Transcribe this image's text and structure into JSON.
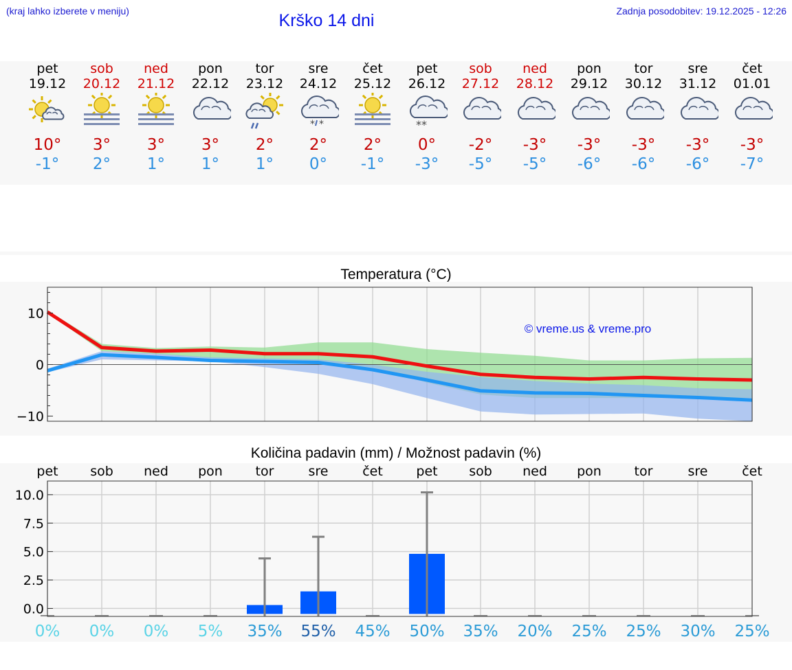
{
  "header": {
    "region_hint": "(kraj lahko izberete v meniju)",
    "title": "Krško 14 dni",
    "last_update": "Zadnja posodobitev: 19.12.2025 - 12:26"
  },
  "forecast": [
    {
      "day": "pet",
      "date": "19.12",
      "weekend": false,
      "icon": "sun-cloud-icon",
      "max": "10°",
      "min": "-1°"
    },
    {
      "day": "sob",
      "date": "20.12",
      "weekend": true,
      "icon": "sun-fog-icon",
      "max": "3°",
      "min": "2°"
    },
    {
      "day": "ned",
      "date": "21.12",
      "weekend": true,
      "icon": "sun-fog-icon",
      "max": "3°",
      "min": "1°"
    },
    {
      "day": "pon",
      "date": "22.12",
      "weekend": false,
      "icon": "cloud-icon",
      "max": "3°",
      "min": "1°"
    },
    {
      "day": "tor",
      "date": "23.12",
      "weekend": false,
      "icon": "sun-rain-icon",
      "max": "2°",
      "min": "1°"
    },
    {
      "day": "sre",
      "date": "24.12",
      "weekend": false,
      "icon": "cloud-sleet-icon",
      "max": "2°",
      "min": "0°"
    },
    {
      "day": "čet",
      "date": "25.12",
      "weekend": false,
      "icon": "sun-fog-icon",
      "max": "2°",
      "min": "-1°"
    },
    {
      "day": "pet",
      "date": "26.12",
      "weekend": false,
      "icon": "cloud-snow-icon",
      "max": "0°",
      "min": "-3°"
    },
    {
      "day": "sob",
      "date": "27.12",
      "weekend": true,
      "icon": "cloud-icon",
      "max": "-2°",
      "min": "-5°"
    },
    {
      "day": "ned",
      "date": "28.12",
      "weekend": true,
      "icon": "cloud-icon",
      "max": "-3°",
      "min": "-5°"
    },
    {
      "day": "pon",
      "date": "29.12",
      "weekend": false,
      "icon": "cloud-icon",
      "max": "-3°",
      "min": "-6°"
    },
    {
      "day": "tor",
      "date": "30.12",
      "weekend": false,
      "icon": "cloud-icon",
      "max": "-3°",
      "min": "-6°"
    },
    {
      "day": "sre",
      "date": "31.12",
      "weekend": false,
      "icon": "cloud-icon",
      "max": "-3°",
      "min": "-6°"
    },
    {
      "day": "čet",
      "date": "01.01",
      "weekend": false,
      "icon": "cloud-icon",
      "max": "-3°",
      "min": "-7°"
    }
  ],
  "colors": {
    "max_line": "#ee1111",
    "min_line": "#2196f3",
    "max_band": "#8fdc8f",
    "min_band": "#93b4ee",
    "precip_bar": "#0059ff",
    "error_bar": "#808080",
    "title_blue": "#0a16e8"
  },
  "chart_data": [
    {
      "type": "line",
      "title": "Temperatura (°C)",
      "watermark": "© vreme.us & vreme.pro",
      "x": [
        0,
        1,
        2,
        3,
        4,
        5,
        6,
        7,
        8,
        9,
        10,
        11,
        12,
        13
      ],
      "ylim": [
        -11,
        15
      ],
      "yticks": [
        10,
        0,
        -10
      ],
      "ytick_labels": [
        "10",
        "0",
        "−10"
      ],
      "series": [
        {
          "name": "max",
          "values": [
            10.2,
            3.3,
            2.6,
            2.8,
            2.1,
            2.1,
            1.5,
            -0.3,
            -1.9,
            -2.5,
            -2.8,
            -2.5,
            -2.8,
            -3.0
          ]
        },
        {
          "name": "min",
          "values": [
            -1.2,
            1.9,
            1.4,
            0.8,
            0.6,
            0.4,
            -1.0,
            -3.0,
            -5.1,
            -5.5,
            -5.6,
            -6.0,
            -6.4,
            -6.9
          ]
        }
      ],
      "max_band": {
        "upper": [
          10.5,
          4.0,
          3.2,
          3.5,
          3.3,
          4.3,
          4.3,
          3.0,
          2.3,
          1.7,
          0.8,
          0.8,
          1.2,
          1.3
        ],
        "lower": [
          10.0,
          2.6,
          2.0,
          1.2,
          1.0,
          0.6,
          -0.6,
          -3.5,
          -5.8,
          -6.5,
          -6.5,
          -6.5,
          -6.5,
          -6.5
        ]
      },
      "min_band": {
        "upper": [
          -0.8,
          2.6,
          2.1,
          1.4,
          1.2,
          1.0,
          0.0,
          -1.4,
          -2.4,
          -3.2,
          -3.7,
          -4.0,
          -4.6,
          -4.8
        ],
        "lower": [
          -1.5,
          1.0,
          0.8,
          0.6,
          -0.5,
          -1.8,
          -3.8,
          -6.5,
          -9.1,
          -9.7,
          -9.6,
          -9.5,
          -10.5,
          -11.0
        ]
      }
    },
    {
      "type": "bar",
      "title": "Količina padavin (mm) / Možnost padavin (%)",
      "categories": [
        "pet",
        "sob",
        "ned",
        "pon",
        "tor",
        "sre",
        "čet",
        "pet",
        "sob",
        "ned",
        "pon",
        "tor",
        "sre",
        "čet"
      ],
      "values": [
        0,
        0,
        0,
        0,
        0.3,
        1.5,
        0,
        4.8,
        0,
        0,
        0,
        0,
        0,
        0
      ],
      "error_upper": [
        0,
        0,
        0,
        0,
        4.4,
        6.3,
        0,
        10.2,
        0,
        0,
        0,
        0,
        0,
        0
      ],
      "ylim": [
        -0.7,
        11.2
      ],
      "yticks": [
        10.0,
        7.5,
        5.0,
        2.5,
        0.0
      ],
      "ytick_labels": [
        "10.0",
        "7.5",
        "5.0",
        "2.5",
        "0.0"
      ],
      "probability": [
        "0%",
        "0%",
        "0%",
        "5%",
        "35%",
        "55%",
        "45%",
        "50%",
        "35%",
        "20%",
        "25%",
        "25%",
        "30%",
        "25%"
      ]
    }
  ]
}
